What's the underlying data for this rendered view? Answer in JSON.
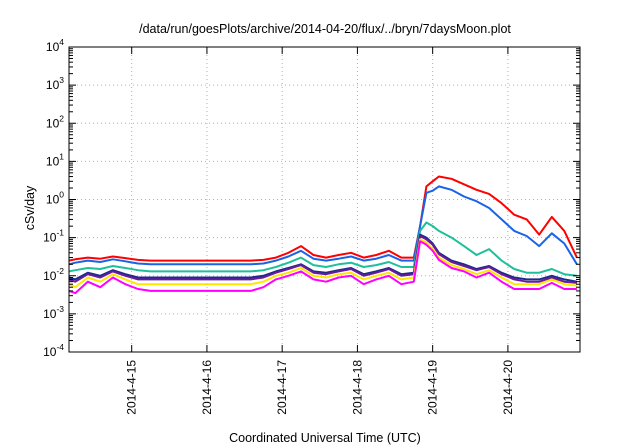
{
  "chart_data": {
    "type": "line",
    "title": "/data/run/goesPlots/archive/2014-04-20/flux/../bryn/7daysMoon.plot",
    "xlabel": "Coordinated Universal Time (UTC)",
    "ylabel": "cSv/day",
    "y_scale": "log",
    "ylim": [
      0.0001,
      10000
    ],
    "y_ticks": [
      {
        "base": "10",
        "exp": "-4",
        "value": 0.0001
      },
      {
        "base": "10",
        "exp": "-3",
        "value": 0.001
      },
      {
        "base": "10",
        "exp": "-2",
        "value": 0.01
      },
      {
        "base": "10",
        "exp": "-1",
        "value": 0.1
      },
      {
        "base": "10",
        "exp": "0",
        "value": 1
      },
      {
        "base": "10",
        "exp": "1",
        "value": 10
      },
      {
        "base": "10",
        "exp": "2",
        "value": 100
      },
      {
        "base": "10",
        "exp": "3",
        "value": 1000
      },
      {
        "base": "10",
        "exp": "4",
        "value": 10000
      }
    ],
    "x_ticks": [
      "2014-4-15",
      "2014-4-16",
      "2014-4-17",
      "2014-4-18",
      "2014-4-19",
      "2014-4-20"
    ],
    "xlim": [
      "2014-04-14T04:00",
      "2014-04-20T23:00"
    ],
    "grid": true,
    "x": [
      "2014-04-14T04:00",
      "2014-04-14T06:00",
      "2014-04-14T10:00",
      "2014-04-14T14:00",
      "2014-04-14T18:00",
      "2014-04-14T22:00",
      "2014-04-15T02:00",
      "2014-04-15T06:00",
      "2014-04-15T10:00",
      "2014-04-15T14:00",
      "2014-04-15T18:00",
      "2014-04-15T22:00",
      "2014-04-16T02:00",
      "2014-04-16T06:00",
      "2014-04-16T10:00",
      "2014-04-16T14:00",
      "2014-04-16T18:00",
      "2014-04-16T22:00",
      "2014-04-17T02:00",
      "2014-04-17T06:00",
      "2014-04-17T10:00",
      "2014-04-17T14:00",
      "2014-04-17T18:00",
      "2014-04-17T22:00",
      "2014-04-18T02:00",
      "2014-04-18T06:00",
      "2014-04-18T10:00",
      "2014-04-18T14:00",
      "2014-04-18T18:00",
      "2014-04-18T20:00",
      "2014-04-18T22:00",
      "2014-04-19T00:00",
      "2014-04-19T02:00",
      "2014-04-19T06:00",
      "2014-04-19T10:00",
      "2014-04-19T14:00",
      "2014-04-19T18:00",
      "2014-04-19T22:00",
      "2014-04-20T02:00",
      "2014-04-20T06:00",
      "2014-04-20T10:00",
      "2014-04-20T14:00",
      "2014-04-20T18:00",
      "2014-04-20T22:00"
    ],
    "series": [
      {
        "color": "#ff0000",
        "values": [
          0.025,
          0.027,
          0.03,
          0.028,
          0.032,
          0.029,
          0.026,
          0.025,
          0.025,
          0.025,
          0.025,
          0.025,
          0.025,
          0.025,
          0.025,
          0.025,
          0.026,
          0.03,
          0.04,
          0.06,
          0.035,
          0.03,
          0.035,
          0.04,
          0.03,
          0.035,
          0.045,
          0.03,
          0.03,
          0.2,
          2.2,
          3,
          4,
          3.5,
          2.5,
          1.8,
          1.4,
          0.8,
          0.4,
          0.3,
          0.12,
          0.35,
          0.15,
          0.03
        ]
      },
      {
        "color": "#1a63e8",
        "values": [
          0.02,
          0.022,
          0.025,
          0.023,
          0.027,
          0.024,
          0.021,
          0.02,
          0.02,
          0.02,
          0.02,
          0.02,
          0.02,
          0.02,
          0.02,
          0.02,
          0.021,
          0.025,
          0.032,
          0.045,
          0.028,
          0.025,
          0.028,
          0.032,
          0.025,
          0.028,
          0.035,
          0.025,
          0.025,
          0.2,
          1.5,
          1.7,
          2.2,
          1.8,
          1.2,
          0.9,
          0.6,
          0.3,
          0.15,
          0.11,
          0.06,
          0.13,
          0.07,
          0.02
        ]
      },
      {
        "color": "#1fbf9b",
        "values": [
          0.013,
          0.014,
          0.016,
          0.015,
          0.018,
          0.016,
          0.014,
          0.013,
          0.013,
          0.013,
          0.013,
          0.013,
          0.013,
          0.013,
          0.013,
          0.013,
          0.014,
          0.017,
          0.022,
          0.03,
          0.019,
          0.017,
          0.02,
          0.022,
          0.017,
          0.019,
          0.023,
          0.017,
          0.017,
          0.15,
          0.25,
          0.2,
          0.15,
          0.1,
          0.06,
          0.035,
          0.05,
          0.025,
          0.015,
          0.012,
          0.012,
          0.015,
          0.011,
          0.01
        ]
      },
      {
        "color": "#1b2a8c",
        "values": [
          0.009,
          0.008,
          0.012,
          0.01,
          0.014,
          0.011,
          0.009,
          0.009,
          0.009,
          0.009,
          0.009,
          0.009,
          0.009,
          0.009,
          0.009,
          0.009,
          0.01,
          0.013,
          0.016,
          0.02,
          0.013,
          0.012,
          0.014,
          0.016,
          0.011,
          0.013,
          0.016,
          0.011,
          0.012,
          0.12,
          0.1,
          0.07,
          0.04,
          0.025,
          0.02,
          0.015,
          0.018,
          0.012,
          0.009,
          0.008,
          0.008,
          0.01,
          0.008,
          0.007
        ]
      },
      {
        "color": "#6a1b9a",
        "values": [
          0.008,
          0.007,
          0.011,
          0.009,
          0.013,
          0.01,
          0.008,
          0.008,
          0.008,
          0.008,
          0.008,
          0.008,
          0.008,
          0.008,
          0.008,
          0.008,
          0.009,
          0.012,
          0.015,
          0.019,
          0.012,
          0.011,
          0.013,
          0.015,
          0.01,
          0.012,
          0.015,
          0.01,
          0.011,
          0.11,
          0.09,
          0.065,
          0.037,
          0.023,
          0.018,
          0.014,
          0.017,
          0.011,
          0.008,
          0.007,
          0.007,
          0.009,
          0.007,
          0.0065
        ]
      },
      {
        "color": "#ffe600",
        "values": [
          0.006,
          0.005,
          0.009,
          0.007,
          0.011,
          0.008,
          0.006,
          0.006,
          0.006,
          0.006,
          0.006,
          0.006,
          0.006,
          0.006,
          0.006,
          0.006,
          0.007,
          0.01,
          0.012,
          0.016,
          0.01,
          0.009,
          0.011,
          0.012,
          0.008,
          0.01,
          0.012,
          0.008,
          0.009,
          0.09,
          0.075,
          0.05,
          0.03,
          0.019,
          0.015,
          0.011,
          0.014,
          0.009,
          0.006,
          0.006,
          0.006,
          0.008,
          0.006,
          0.0055
        ]
      },
      {
        "color": "#ff00ff",
        "values": [
          0.004,
          0.0035,
          0.007,
          0.005,
          0.009,
          0.006,
          0.0045,
          0.004,
          0.004,
          0.004,
          0.004,
          0.004,
          0.004,
          0.004,
          0.004,
          0.004,
          0.005,
          0.008,
          0.01,
          0.013,
          0.008,
          0.007,
          0.009,
          0.01,
          0.006,
          0.008,
          0.01,
          0.006,
          0.007,
          0.08,
          0.065,
          0.045,
          0.026,
          0.016,
          0.013,
          0.009,
          0.012,
          0.007,
          0.0045,
          0.0045,
          0.0045,
          0.0065,
          0.0045,
          0.0045
        ]
      }
    ]
  }
}
